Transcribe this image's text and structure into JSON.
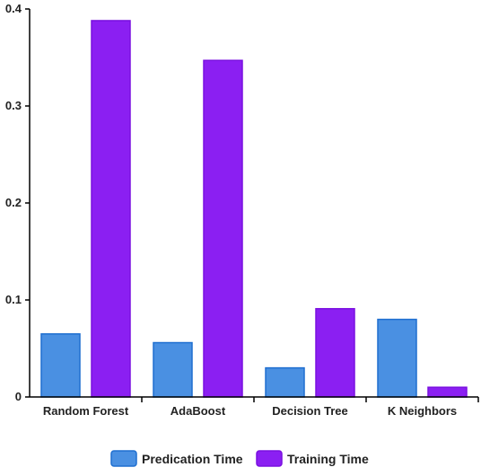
{
  "chart_data": {
    "type": "bar",
    "title": "",
    "xlabel": "",
    "ylabel": "",
    "categories": [
      "Random Forest",
      "AdaBoost",
      "Decision Tree",
      "K Neighbors"
    ],
    "series": [
      {
        "name": "Predication Time",
        "values": [
          0.065,
          0.056,
          0.03,
          0.08
        ],
        "color": "#4a90e2",
        "stroke": "#1f6fd0"
      },
      {
        "name": "Training Time",
        "values": [
          0.388,
          0.347,
          0.091,
          0.01
        ],
        "color": "#8b1ff2",
        "stroke": "#7a10e0"
      }
    ],
    "ylim": [
      0,
      0.4
    ],
    "yticks": [
      "0",
      "0.1",
      "0.2",
      "0.3",
      "0.4"
    ],
    "grid": false,
    "legend_position": "bottom"
  }
}
